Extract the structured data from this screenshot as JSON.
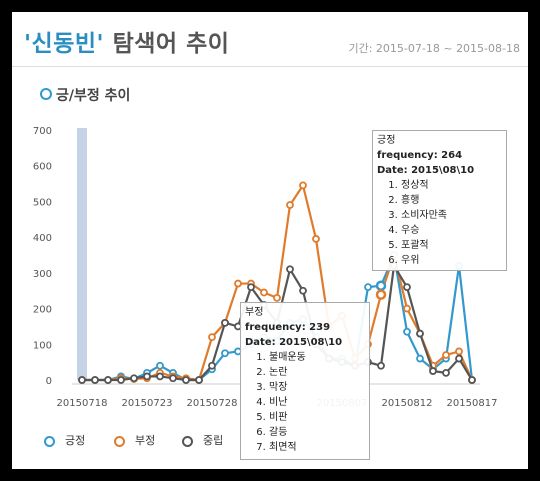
{
  "header": {
    "keyword": "'신동빈'",
    "title_rest": " 탐색어 추이",
    "period": "기간: 2015-07-18 ~ 2015-08-18"
  },
  "section": {
    "title": "긍/부정 추이"
  },
  "colors": {
    "positive": "#3399cc",
    "negative": "#e07b2c",
    "neutral": "#555555",
    "accent": "#2a8fc0"
  },
  "chart_data": {
    "type": "line",
    "x": [
      "20150718",
      "20150719",
      "20150720",
      "20150721",
      "20150722",
      "20150723",
      "20150724",
      "20150725",
      "20150726",
      "20150727",
      "20150728",
      "20150729",
      "20150730",
      "20150731",
      "20150801",
      "20150802",
      "20150803",
      "20150804",
      "20150805",
      "20150806",
      "20150807",
      "20150808",
      "20150809",
      "20150810",
      "20150811",
      "20150812",
      "20150813",
      "20150814",
      "20150815",
      "20150816",
      "20150817"
    ],
    "x_tick_labels": [
      "20150718",
      "20150723",
      "20150728",
      "20150807",
      "20150812",
      "20150817"
    ],
    "series": [
      {
        "name": "긍정",
        "color": "#3399cc",
        "values": [
          0,
          0,
          0,
          10,
          3,
          20,
          40,
          20,
          0,
          0,
          30,
          75,
          80,
          100,
          120,
          110,
          160,
          170,
          120,
          60,
          60,
          40,
          260,
          264,
          350,
          135,
          60,
          30,
          60,
          320,
          0
        ]
      },
      {
        "name": "부정",
        "color": "#e07b2c",
        "values": [
          0,
          0,
          0,
          5,
          3,
          5,
          20,
          10,
          5,
          0,
          120,
          160,
          270,
          270,
          245,
          230,
          490,
          545,
          395,
          150,
          180,
          60,
          100,
          239,
          350,
          200,
          130,
          40,
          70,
          80,
          0
        ]
      },
      {
        "name": "중립",
        "color": "#555555",
        "values": [
          0,
          0,
          0,
          0,
          5,
          10,
          10,
          5,
          0,
          0,
          40,
          160,
          150,
          260,
          210,
          160,
          310,
          250,
          100,
          60,
          50,
          40,
          50,
          40,
          320,
          260,
          130,
          25,
          20,
          60,
          0
        ]
      }
    ],
    "ylim": [
      0,
      700
    ],
    "yticks": [
      0,
      100,
      200,
      300,
      400,
      500,
      600,
      700
    ],
    "legend": "bottom-left"
  },
  "tooltips": [
    {
      "head": "긍정",
      "freq": "frequency: 264",
      "date": "Date: 2015\\08\\10",
      "items": [
        "정상적",
        "흥행",
        "소비자만족",
        "우승",
        "포괄적",
        "우위"
      ]
    },
    {
      "head": "부정",
      "freq": "frequency: 239",
      "date": "Date: 2015\\08\\10",
      "items": [
        "불매운동",
        "논란",
        "막장",
        "비난",
        "비판",
        "갈등",
        "최면적"
      ]
    }
  ]
}
